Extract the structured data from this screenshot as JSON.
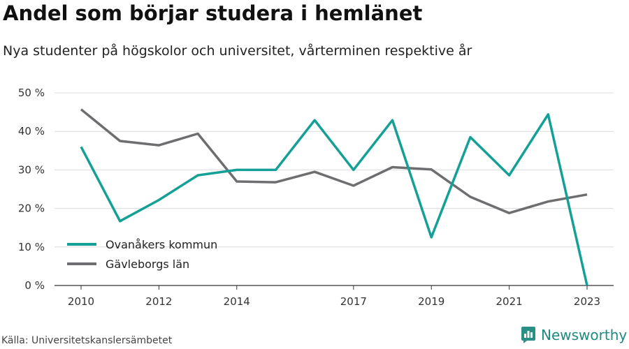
{
  "chart_data": {
    "type": "line",
    "title": "Andel som börjar studera i hemlänet",
    "subtitle": "Nya studenter på högskolor och universitet, vårterminen respektive år",
    "x": [
      2010,
      2011,
      2012,
      2013,
      2014,
      2015,
      2016,
      2017,
      2018,
      2019,
      2020,
      2021,
      2022,
      2023
    ],
    "series": [
      {
        "name": "Ovanåkers kommun",
        "color": "#14a096",
        "values": [
          36,
          16.7,
          22.2,
          28.6,
          30,
          30,
          42.9,
          30,
          42.9,
          12.5,
          38.5,
          28.6,
          44.4,
          0
        ]
      },
      {
        "name": "Gävleborgs län",
        "color": "#6e6d70",
        "values": [
          45.7,
          37.5,
          36.4,
          39.4,
          27,
          26.8,
          29.5,
          25.9,
          30.7,
          30.1,
          23,
          18.8,
          21.8,
          23.6
        ]
      }
    ],
    "xticks": [
      2010,
      2012,
      2014,
      2017,
      2019,
      2021,
      2023
    ],
    "yticks": [
      "0 %",
      "10 %",
      "20 %",
      "30 %",
      "40 %",
      "50 %"
    ],
    "ylim": [
      0,
      50
    ],
    "grid": true,
    "legend": "bottom-left"
  },
  "source": "Källa: Universitetskanslersämbetet",
  "brand": {
    "name": "Newsworthy",
    "color": "#1f8a80"
  }
}
